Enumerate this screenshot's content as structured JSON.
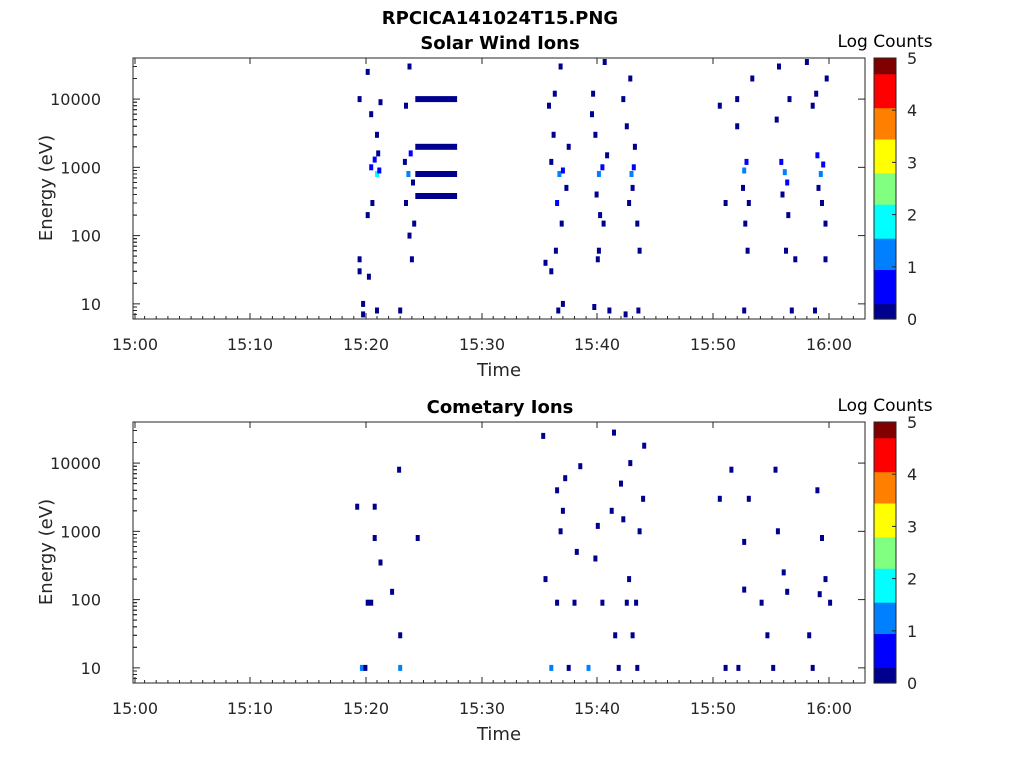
{
  "figure": {
    "title": "RPCICA141024T15.PNG"
  },
  "colormap": [
    "#00008f",
    "#0000ff",
    "#0080ff",
    "#00ffff",
    "#80ff80",
    "#ffff00",
    "#ff8000",
    "#ff0000",
    "#800000"
  ],
  "chart_data": [
    {
      "type": "heatmap",
      "title": "Solar Wind Ions",
      "xlabel": "Time",
      "ylabel": "Energy (eV)",
      "x_ticks": [
        "15:00",
        "15:10",
        "15:20",
        "15:30",
        "15:40",
        "15:50",
        "16:00"
      ],
      "x_range_minutes": [
        0,
        63
      ],
      "y_ticks": [
        "10",
        "100",
        "1000",
        "10000"
      ],
      "y_scale": "log",
      "y_range": [
        6,
        40000
      ],
      "colorbar": {
        "label": "Log Counts",
        "ticks": [
          "0",
          "1",
          "2",
          "3",
          "4",
          "5"
        ],
        "range": [
          0,
          5
        ]
      },
      "cells": [
        [
          19.5,
          45,
          0.1
        ],
        [
          19.5,
          30,
          0.1
        ],
        [
          19.8,
          10,
          0.15
        ],
        [
          19.8,
          7,
          0.2
        ],
        [
          20.3,
          25,
          0.1
        ],
        [
          21,
          8,
          0.1
        ],
        [
          23,
          8,
          0.15
        ],
        [
          20.5,
          1000,
          0.6
        ],
        [
          21,
          800,
          1.6
        ],
        [
          21.2,
          900,
          0.9
        ],
        [
          20.8,
          1300,
          0.4
        ],
        [
          21.1,
          1600,
          0.3
        ],
        [
          20.2,
          200,
          0.2
        ],
        [
          20.6,
          300,
          0.2
        ],
        [
          21,
          3000,
          0.2
        ],
        [
          20.5,
          6000,
          0.2
        ],
        [
          21.3,
          9000,
          0.1
        ],
        [
          19.5,
          10000,
          0.1
        ],
        [
          20.2,
          25000,
          0.1
        ],
        [
          23.4,
          1200,
          0.3
        ],
        [
          23.7,
          800,
          1.3
        ],
        [
          23.9,
          1600,
          0.5
        ],
        [
          24.1,
          600,
          0.3
        ],
        [
          23.5,
          300,
          0.2
        ],
        [
          24.2,
          150,
          0.15
        ],
        [
          23.8,
          100,
          0.1
        ],
        [
          23.8,
          30000,
          0.1
        ],
        [
          23.5,
          8000,
          0.1
        ],
        [
          24,
          45,
          0.1
        ],
        [
          35.5,
          40,
          0.1
        ],
        [
          35.8,
          8000,
          0.2
        ],
        [
          36.2,
          3000,
          0.3
        ],
        [
          36.7,
          800,
          1.1
        ],
        [
          37,
          900,
          0.5
        ],
        [
          36.5,
          300,
          0.4
        ],
        [
          36.9,
          150,
          0.2
        ],
        [
          36.4,
          60,
          0.1
        ],
        [
          36.6,
          8,
          0.2
        ],
        [
          37.3,
          500,
          0.3
        ],
        [
          36,
          1200,
          0.3
        ],
        [
          37.5,
          2000,
          0.2
        ],
        [
          36.8,
          30000,
          0.1
        ],
        [
          36.3,
          12000,
          0.2
        ],
        [
          37,
          10,
          0.1
        ],
        [
          36,
          30,
          0.2
        ],
        [
          39.5,
          6000,
          0.2
        ],
        [
          39.8,
          3000,
          0.3
        ],
        [
          40.1,
          800,
          1.4
        ],
        [
          40.4,
          1000,
          0.6
        ],
        [
          39.9,
          400,
          0.3
        ],
        [
          40.2,
          200,
          0.2
        ],
        [
          40.5,
          150,
          0.2
        ],
        [
          40.1,
          60,
          0.1
        ],
        [
          39.6,
          12000,
          0.2
        ],
        [
          40.6,
          35000,
          0.1
        ],
        [
          40.8,
          1500,
          0.3
        ],
        [
          39.7,
          9,
          0.15
        ],
        [
          40,
          45,
          0.1
        ],
        [
          41,
          8,
          0.1
        ],
        [
          42.5,
          4000,
          0.3
        ],
        [
          42.9,
          800,
          1.5
        ],
        [
          43.1,
          1000,
          0.7
        ],
        [
          43.2,
          2000,
          0.3
        ],
        [
          42.7,
          300,
          0.2
        ],
        [
          43,
          500,
          0.2
        ],
        [
          43.4,
          150,
          0.2
        ],
        [
          43.6,
          60,
          0.1
        ],
        [
          42.2,
          10000,
          0.2
        ],
        [
          42.8,
          20000,
          0.1
        ],
        [
          43.5,
          8,
          0.2
        ],
        [
          42.4,
          7,
          0.15
        ],
        [
          50.5,
          8000,
          0.2
        ],
        [
          51,
          300,
          0.1
        ],
        [
          52,
          4000,
          0.3
        ],
        [
          52.6,
          900,
          1.3
        ],
        [
          52.8,
          1200,
          0.6
        ],
        [
          52.5,
          500,
          0.3
        ],
        [
          53,
          300,
          0.2
        ],
        [
          52.7,
          150,
          0.15
        ],
        [
          52.9,
          60,
          0.1
        ],
        [
          52.6,
          8,
          0.2
        ],
        [
          53.3,
          20000,
          0.1
        ],
        [
          52,
          10000,
          0.1
        ],
        [
          55.4,
          5000,
          0.2
        ],
        [
          55.8,
          1200,
          0.5
        ],
        [
          56.1,
          850,
          1.3
        ],
        [
          56.3,
          600,
          0.4
        ],
        [
          55.9,
          400,
          0.3
        ],
        [
          56.4,
          200,
          0.2
        ],
        [
          56.2,
          60,
          0.1
        ],
        [
          55.6,
          30000,
          0.1
        ],
        [
          56.5,
          10000,
          0.15
        ],
        [
          56.7,
          8,
          0.1
        ],
        [
          57,
          45,
          0.1
        ],
        [
          58.5,
          8000,
          0.2
        ],
        [
          58.9,
          1500,
          0.4
        ],
        [
          59.2,
          800,
          1.5
        ],
        [
          59.4,
          1100,
          0.6
        ],
        [
          59,
          500,
          0.2
        ],
        [
          59.3,
          300,
          0.2
        ],
        [
          59.6,
          150,
          0.15
        ],
        [
          58.8,
          12000,
          0.15
        ],
        [
          59.7,
          20000,
          0.1
        ],
        [
          59.6,
          45,
          0.1
        ],
        [
          58.7,
          8,
          0.1
        ],
        [
          58,
          35000,
          0.1
        ]
      ],
      "lines": [
        [
          24.3,
          27.9,
          10000,
          0.1
        ],
        [
          24.3,
          27.9,
          2000,
          0.2
        ],
        [
          24.3,
          27.9,
          800,
          0.2
        ],
        [
          24.3,
          27.9,
          380,
          0.2
        ]
      ]
    },
    {
      "type": "heatmap",
      "title": "Cometary Ions",
      "xlabel": "Time",
      "ylabel": "Energy (eV)",
      "x_ticks": [
        "15:00",
        "15:10",
        "15:20",
        "15:30",
        "15:40",
        "15:50",
        "16:00"
      ],
      "x_range_minutes": [
        0,
        63
      ],
      "y_ticks": [
        "10",
        "100",
        "1000",
        "10000"
      ],
      "y_scale": "log",
      "y_range": [
        6,
        40000
      ],
      "colorbar": {
        "label": "Log Counts",
        "ticks": [
          "0",
          "1",
          "2",
          "3",
          "4",
          "5"
        ],
        "range": [
          0,
          5
        ]
      },
      "cells": [
        [
          19.7,
          10,
          1.3
        ],
        [
          20,
          10,
          0.2
        ],
        [
          23,
          10,
          1.2
        ],
        [
          23,
          30,
          0.1
        ],
        [
          20.2,
          90,
          0.1
        ],
        [
          20.5,
          90,
          0.1
        ],
        [
          22.3,
          130,
          0.1
        ],
        [
          21.3,
          350,
          0.1
        ],
        [
          20.8,
          800,
          0.1
        ],
        [
          19.3,
          2300,
          0.1
        ],
        [
          20.8,
          2300,
          0.1
        ],
        [
          24.5,
          800,
          0.1
        ],
        [
          22.9,
          8000,
          0.1
        ],
        [
          35.3,
          25000,
          0.1
        ],
        [
          35.5,
          200,
          0.2
        ],
        [
          36,
          10,
          1.4
        ],
        [
          36.5,
          90,
          0.2
        ],
        [
          36.8,
          1000,
          0.2
        ],
        [
          37,
          2000,
          0.2
        ],
        [
          36.5,
          4000,
          0.1
        ],
        [
          37.2,
          6000,
          0.1
        ],
        [
          37.5,
          10,
          0.2
        ],
        [
          38,
          90,
          0.1
        ],
        [
          38.2,
          500,
          0.1
        ],
        [
          38.5,
          9000,
          0.1
        ],
        [
          39.2,
          10,
          1.2
        ],
        [
          39.8,
          400,
          0.1
        ],
        [
          40,
          1200,
          0.1
        ],
        [
          40.4,
          90,
          0.1
        ],
        [
          41.2,
          2000,
          0.1
        ],
        [
          41.5,
          30,
          0.2
        ],
        [
          41.8,
          10,
          0.2
        ],
        [
          42,
          5000,
          0.1
        ],
        [
          42.2,
          1500,
          0.1
        ],
        [
          42.5,
          90,
          0.1
        ],
        [
          42.7,
          200,
          0.1
        ],
        [
          43,
          30,
          0.2
        ],
        [
          43.3,
          90,
          0.1
        ],
        [
          43.6,
          1000,
          0.1
        ],
        [
          43.9,
          3000,
          0.1
        ],
        [
          43.4,
          10,
          0.1
        ],
        [
          41.4,
          28000,
          0.1
        ],
        [
          42.8,
          10000,
          0.1
        ],
        [
          44,
          18000,
          0.1
        ],
        [
          50.5,
          3000,
          0.1
        ],
        [
          51,
          10,
          0.2
        ],
        [
          51.5,
          8000,
          0.1
        ],
        [
          52.1,
          10,
          0.1
        ],
        [
          52.6,
          140,
          0.1
        ],
        [
          52.6,
          700,
          0.1
        ],
        [
          53,
          3000,
          0.1
        ],
        [
          54.1,
          90,
          0.1
        ],
        [
          54.6,
          30,
          0.2
        ],
        [
          55.1,
          10,
          0.2
        ],
        [
          55.3,
          8000,
          0.1
        ],
        [
          55.5,
          1000,
          0.1
        ],
        [
          56,
          250,
          0.1
        ],
        [
          56.3,
          130,
          0.1
        ],
        [
          58.2,
          30,
          0.2
        ],
        [
          58.5,
          10,
          0.2
        ],
        [
          58.9,
          4000,
          0.1
        ],
        [
          59.3,
          800,
          0.1
        ],
        [
          59.6,
          200,
          0.1
        ],
        [
          60,
          90,
          0.1
        ],
        [
          59.1,
          120,
          0.1
        ]
      ],
      "lines": []
    }
  ]
}
